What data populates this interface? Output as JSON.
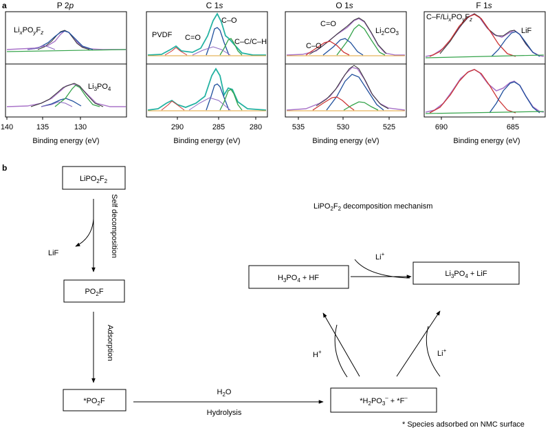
{
  "figure": {
    "panel_a_letter": "a",
    "panel_b_letter": "b"
  },
  "xps_panels": [
    {
      "id": "p2p",
      "title_main": "P 2",
      "title_orb": "p",
      "xlabel": "Binding energy (eV)",
      "ticks": [
        "140",
        "135",
        "130"
      ],
      "top_label": "LixPOyFz",
      "bottom_label": "Li3PO4"
    },
    {
      "id": "c1s",
      "title_main": "C 1",
      "title_orb": "s",
      "xlabel": "Binding energy (eV)",
      "ticks": [
        "290",
        "285",
        "280"
      ],
      "peak_labels": [
        "PVDF",
        "C=O",
        "C–O",
        "C–C/C–H"
      ]
    },
    {
      "id": "o1s",
      "title_main": "O 1",
      "title_orb": "s",
      "xlabel": "Binding energy (eV)",
      "ticks": [
        "535",
        "530",
        "525"
      ],
      "peak_labels": [
        "C=O",
        "C–O",
        "Li2CO3"
      ]
    },
    {
      "id": "f1s",
      "title_main": "F 1",
      "title_orb": "s",
      "xlabel": "Binding energy (eV)",
      "ticks": [
        "690",
        "685"
      ],
      "peak_labels": [
        "C–F/LixPOyFz",
        "LiF"
      ]
    }
  ],
  "colors": {
    "raw_purple": "#a873c8",
    "raw_dark": "#333333",
    "envelope_teal": "#23b2a2",
    "blue": "#1f4f9c",
    "green": "#34a34a",
    "red": "#cc3333",
    "violet": "#8b68c0",
    "orange": "#e0a030"
  },
  "mechanism": {
    "title": "LiPO2F2 decomposition mechanism",
    "node_lipo2f2": "LiPO2F2",
    "node_po2f": "PO2F",
    "node_adsorbed": "*PO2F",
    "node_h3po4": "H3PO4 + HF",
    "node_li3po4": "Li3PO4 + LiF",
    "node_h2po3": "*H2PO3– + *F–",
    "label_self_decomp": "Self decomposition",
    "label_adsorption": "Adsorption",
    "label_lif": "LiF",
    "label_h2o": "H2O",
    "label_hydrolysis": "Hydrolysis",
    "label_h_plus": "H+",
    "label_li_plus": "Li+",
    "footnote": "* Species adsorbed on NMC surface"
  }
}
